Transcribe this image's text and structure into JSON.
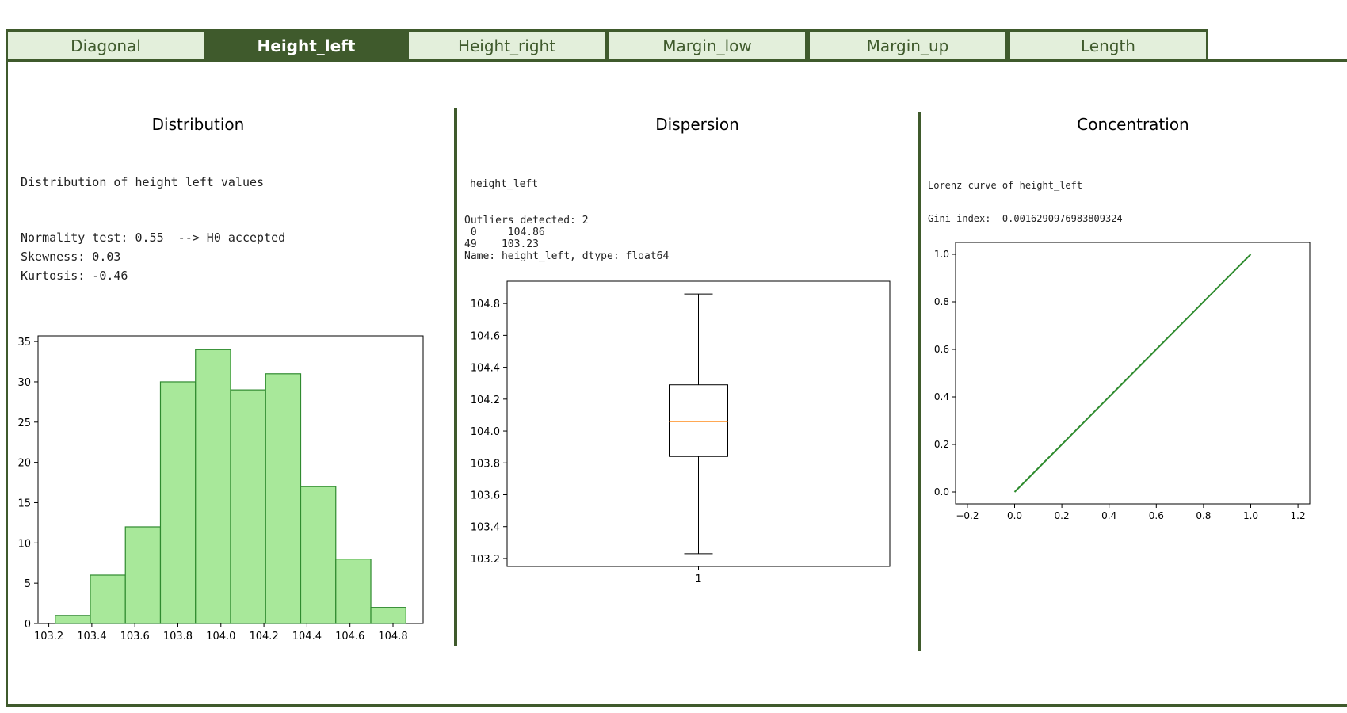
{
  "tabs": [
    "Diagonal",
    "Height_left",
    "Height_right",
    "Margin_low",
    "Margin_up",
    "Length"
  ],
  "active_tab": "Height_left",
  "sections": {
    "distribution": {
      "title": "Distribution",
      "heading": "Distribution of height_left values",
      "normality": "Normality test: 0.55  --> H0 accepted",
      "skewness": "Skewness: 0.03",
      "kurtosis": "Kurtosis: -0.46"
    },
    "dispersion": {
      "title": "Dispersion",
      "heading": "height_left",
      "outliers": "Outliers detected: 2",
      "outlier_row1": " 0     104.86",
      "outlier_row2": "49    103.23",
      "name_line": "Name: height_left, dtype: float64"
    },
    "concentration": {
      "title": "Concentration",
      "heading": "Lorenz curve of height_left",
      "gini": "Gini index:  0.0016290976983809324"
    }
  },
  "chart_data": [
    {
      "type": "bar",
      "chart": "histogram",
      "bin_edges": [
        103.23,
        103.393,
        103.556,
        103.719,
        103.882,
        104.045,
        104.208,
        104.371,
        104.534,
        104.697,
        104.86
      ],
      "values": [
        1,
        6,
        12,
        30,
        34,
        29,
        31,
        17,
        8,
        2
      ],
      "xticks": [
        "103.2",
        "103.4",
        "103.6",
        "103.8",
        "104.0",
        "104.2",
        "104.4",
        "104.6",
        "104.8"
      ],
      "yticks": [
        "0",
        "5",
        "10",
        "15",
        "20",
        "25",
        "30",
        "35"
      ],
      "ylim": [
        0,
        35.7
      ],
      "xlim": [
        103.15,
        104.94
      ],
      "bar_color": "#a8e89a",
      "edge_color": "#2f8a2f"
    },
    {
      "type": "box",
      "whisker_low": 103.23,
      "q1": 103.84,
      "median": 104.06,
      "q3": 104.29,
      "whisker_high": 104.86,
      "ylim": [
        103.15,
        104.94
      ],
      "yticks": [
        "103.2",
        "103.4",
        "103.6",
        "103.8",
        "104.0",
        "104.2",
        "104.4",
        "104.6",
        "104.8"
      ],
      "xtick": "1",
      "median_color": "#ff8c1a"
    },
    {
      "type": "line",
      "x": [
        0.0,
        0.2,
        0.4,
        0.6,
        0.8,
        1.0
      ],
      "y": [
        0.0,
        0.2,
        0.4,
        0.6,
        0.8,
        1.0
      ],
      "xlim": [
        -0.25,
        1.25
      ],
      "ylim": [
        -0.05,
        1.05
      ],
      "xticks": [
        "−0.2",
        "0.0",
        "0.2",
        "0.4",
        "0.6",
        "0.8",
        "1.0",
        "1.2"
      ],
      "yticks": [
        "0.0",
        "0.2",
        "0.4",
        "0.6",
        "0.8",
        "1.0"
      ],
      "line_color": "#2e8b2e"
    }
  ]
}
